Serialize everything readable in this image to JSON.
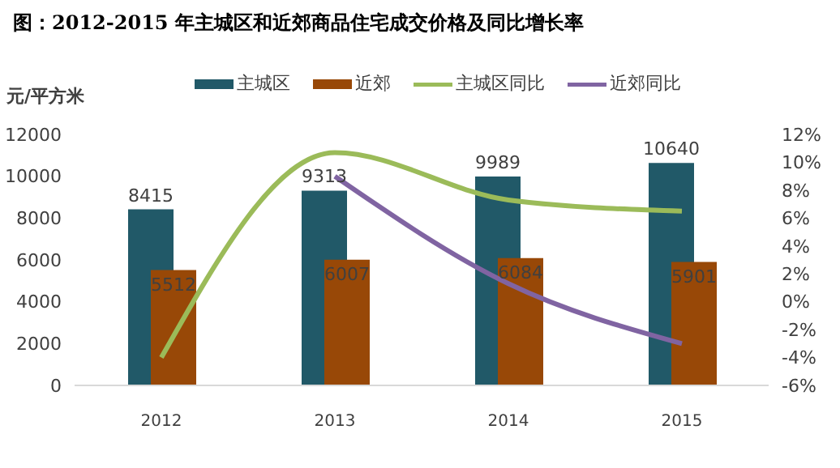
{
  "chart_data": {
    "type": "bar",
    "title": "图：2012-2015 年主城区和近郊商品住宅成交价格及同比增长率",
    "ylabel": "元/平方米",
    "categories": [
      "2012",
      "2013",
      "2014",
      "2015"
    ],
    "series": [
      {
        "name": "主城区",
        "color": "#215968",
        "values": [
          8415,
          9313,
          9989,
          10640
        ],
        "value_labels": [
          "8415",
          "9313",
          "9989",
          "10640"
        ]
      },
      {
        "name": "近郊",
        "color": "#984807",
        "values": [
          5512,
          6007,
          6084,
          5901
        ],
        "value_labels": [
          "5512",
          "6007",
          "6084",
          "5901"
        ]
      },
      {
        "name": "主城区同比",
        "type": "line",
        "axis": "y2",
        "color": "#9bbb59",
        "values": [
          -4,
          10.7,
          7.3,
          6.5
        ]
      },
      {
        "name": "近郊同比",
        "type": "line",
        "axis": "y2",
        "color": "#8064a2",
        "values": [
          null,
          9,
          1.3,
          -3
        ]
      }
    ],
    "ylim": [
      0,
      12000
    ],
    "yticks": [
      0,
      2000,
      4000,
      6000,
      8000,
      10000,
      12000
    ],
    "y2lim": [
      -6,
      12
    ],
    "y2ticks": [
      {
        "value": -6,
        "label": "-6%"
      },
      {
        "value": -4,
        "label": "-4%"
      },
      {
        "value": -2,
        "label": "-2%"
      },
      {
        "value": 0,
        "label": "0%"
      },
      {
        "value": 2,
        "label": "2%"
      },
      {
        "value": 4,
        "label": "4%"
      },
      {
        "value": 6,
        "label": "6%"
      },
      {
        "value": 8,
        "label": "8%"
      },
      {
        "value": 10,
        "label": "10%"
      },
      {
        "value": 12,
        "label": "12%"
      }
    ],
    "grid": false,
    "legend": "top",
    "line_style": "solid",
    "marker": "none"
  }
}
